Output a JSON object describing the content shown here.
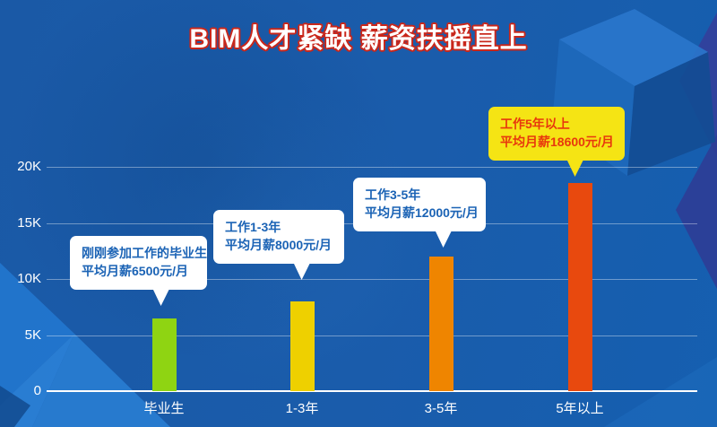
{
  "title": "BIM人才紧缺 薪资扶摇直上",
  "chart_data": {
    "type": "bar",
    "title": "BIM人才紧缺 薪资扶摇直上",
    "categories": [
      "毕业生",
      "1-3年",
      "3-5年",
      "5年以上"
    ],
    "values": [
      6500,
      8000,
      12000,
      18600
    ],
    "bar_colors": [
      "#8fd412",
      "#eed000",
      "#ef8500",
      "#e8490e"
    ],
    "xlabel": "",
    "ylabel": "",
    "ylim": [
      0,
      20000
    ],
    "yticks": [
      "0",
      "5K",
      "10K",
      "15K",
      "20K"
    ],
    "ytick_values": [
      0,
      5000,
      10000,
      15000,
      20000
    ],
    "grid": true,
    "legend": false,
    "callouts": [
      {
        "lines": [
          "刚刚参加工作的毕业生",
          "平均月薪6500元/月"
        ],
        "bg": "#ffffff",
        "text_color": "#1b63b5"
      },
      {
        "lines": [
          "工作1-3年",
          "平均月薪8000元/月"
        ],
        "bg": "#ffffff",
        "text_color": "#1b63b5"
      },
      {
        "lines": [
          "工作3-5年",
          "平均月薪12000元/月"
        ],
        "bg": "#ffffff",
        "text_color": "#1b63b5"
      },
      {
        "lines": [
          "工作5年以上",
          "平均月薪18600元/月"
        ],
        "bg": "#f5e414",
        "text_color": "#e8380d"
      }
    ],
    "colors": {
      "background_blue": "#1a5aa8",
      "title_fill": "#ffffff",
      "title_outline": "#c9271b",
      "axis_white": "#ffffff"
    }
  }
}
